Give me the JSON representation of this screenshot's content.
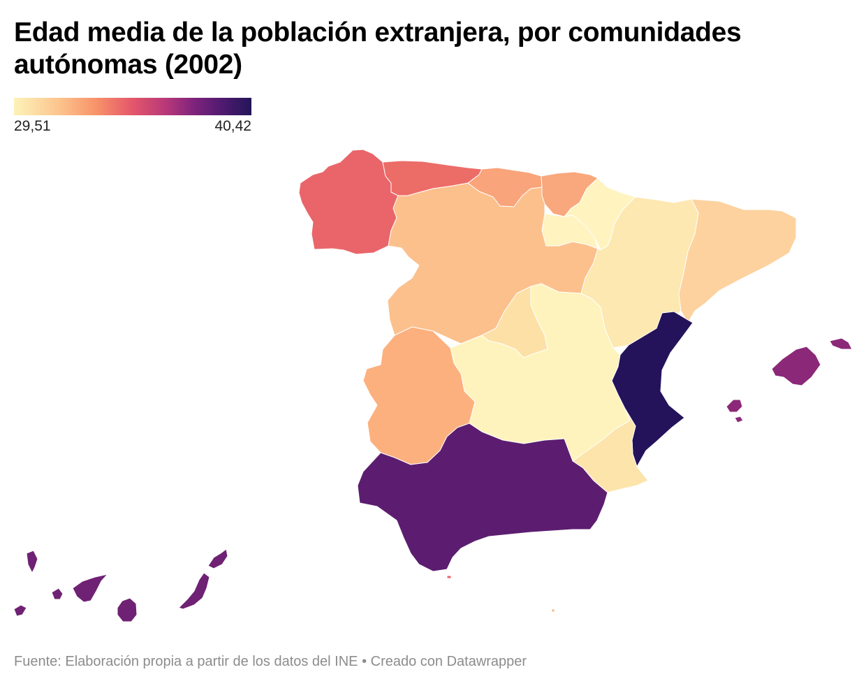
{
  "title": "Edad media de la población extranjera, por comunidades autónomas (2002)",
  "legend": {
    "min_label": "29,51",
    "max_label": "40,42",
    "min": 29.51,
    "max": 40.42
  },
  "regions": [
    {
      "id": "galicia",
      "color": "#e9656a"
    },
    {
      "id": "asturias",
      "color": "#ec6c68"
    },
    {
      "id": "cantabria",
      "color": "#f9a47a"
    },
    {
      "id": "pais-vasco",
      "color": "#f9a77c"
    },
    {
      "id": "navarra",
      "color": "#fff4c0"
    },
    {
      "id": "la-rioja",
      "color": "#fff3bf"
    },
    {
      "id": "aragon",
      "color": "#fce8b0"
    },
    {
      "id": "cataluna",
      "color": "#fdd29e"
    },
    {
      "id": "castilla-y-leon",
      "color": "#fcc08c"
    },
    {
      "id": "madrid",
      "color": "#fde0a6"
    },
    {
      "id": "castilla-la-mancha",
      "color": "#fef3bc"
    },
    {
      "id": "extremadura",
      "color": "#fcb07e"
    },
    {
      "id": "comunidad-valenciana",
      "color": "#24135a"
    },
    {
      "id": "murcia",
      "color": "#fde4ab"
    },
    {
      "id": "andalucia",
      "color": "#5c1d70"
    },
    {
      "id": "baleares",
      "color": "#8b2878"
    },
    {
      "id": "canarias",
      "color": "#6f2174"
    },
    {
      "id": "ceuta",
      "color": "#e9656a"
    },
    {
      "id": "melilla",
      "color": "#fcb07e"
    }
  ],
  "footer": "Fuente: Elaboración propia a partir de los datos del INE • Creado con Datawrapper"
}
